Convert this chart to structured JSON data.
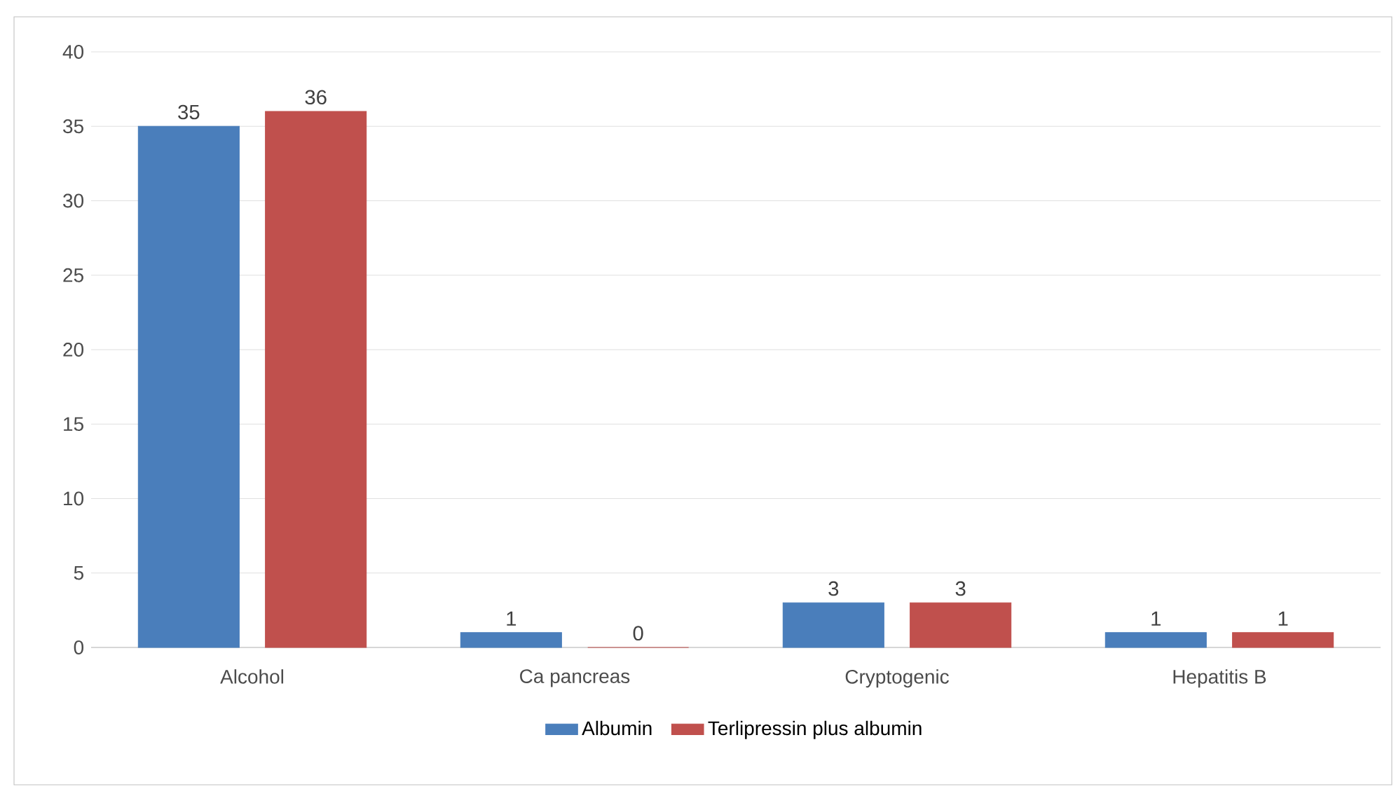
{
  "chart_data": {
    "type": "bar",
    "categories": [
      "Alcohol",
      "Ca pancreas",
      "Cryptogenic",
      "Hepatitis B"
    ],
    "series": [
      {
        "name": "Albumin",
        "color": "#4a7ebb",
        "values": [
          35,
          1,
          3,
          1
        ]
      },
      {
        "name": "Terlipressin plus albumin",
        "color": "#c0504d",
        "values": [
          36,
          0,
          3,
          1
        ]
      }
    ],
    "ylim": [
      0,
      40
    ],
    "yticks": [
      0,
      5,
      10,
      15,
      20,
      25,
      30,
      35,
      40
    ],
    "grid": "y",
    "legend": "bottom",
    "data_labels": true
  }
}
